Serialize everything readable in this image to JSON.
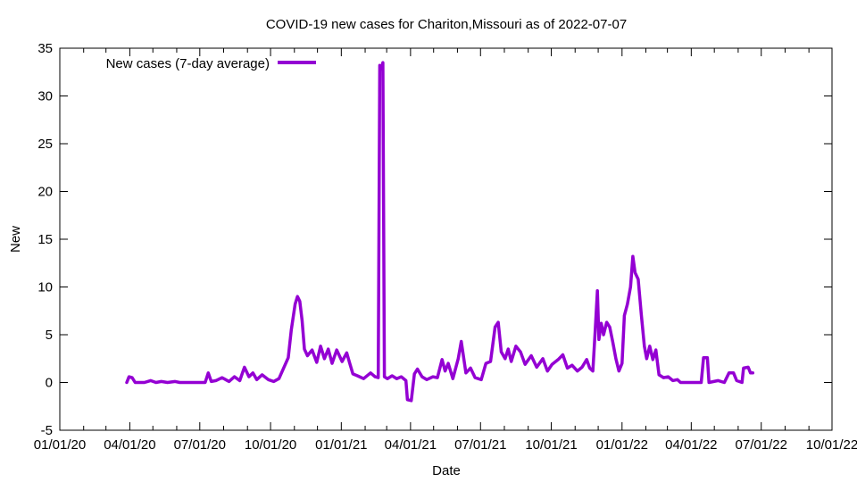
{
  "chart_data": {
    "type": "line",
    "title": "COVID-19 new cases for Chariton,Missouri as of 2022-07-07",
    "xlabel": "Date",
    "ylabel": "New",
    "xlim": [
      "2020-01-01",
      "2022-10-01"
    ],
    "ylim": [
      -5,
      35
    ],
    "x_ticks": [
      "01/01/20",
      "04/01/20",
      "07/01/20",
      "10/01/20",
      "01/01/21",
      "04/01/21",
      "07/01/21",
      "10/01/21",
      "01/01/22",
      "04/01/22",
      "07/01/22",
      "10/01/22"
    ],
    "y_ticks": [
      -5,
      0,
      5,
      10,
      15,
      20,
      25,
      30,
      35
    ],
    "grid": false,
    "legend_position": "top-left",
    "series": [
      {
        "name": "New cases (7-day average)",
        "color": "#9400d3",
        "points": [
          [
            "2020-03-28",
            0.0
          ],
          [
            "2020-03-31",
            0.6
          ],
          [
            "2020-04-04",
            0.5
          ],
          [
            "2020-04-08",
            0.0
          ],
          [
            "2020-04-20",
            0.0
          ],
          [
            "2020-04-28",
            0.2
          ],
          [
            "2020-05-05",
            0.0
          ],
          [
            "2020-05-12",
            0.1
          ],
          [
            "2020-05-20",
            0.0
          ],
          [
            "2020-05-30",
            0.1
          ],
          [
            "2020-06-05",
            0.0
          ],
          [
            "2020-07-08",
            0.0
          ],
          [
            "2020-07-12",
            1.0
          ],
          [
            "2020-07-16",
            0.1
          ],
          [
            "2020-07-22",
            0.2
          ],
          [
            "2020-07-30",
            0.5
          ],
          [
            "2020-08-08",
            0.1
          ],
          [
            "2020-08-15",
            0.6
          ],
          [
            "2020-08-22",
            0.2
          ],
          [
            "2020-08-28",
            1.6
          ],
          [
            "2020-09-03",
            0.6
          ],
          [
            "2020-09-08",
            1.0
          ],
          [
            "2020-09-13",
            0.3
          ],
          [
            "2020-09-20",
            0.8
          ],
          [
            "2020-09-28",
            0.3
          ],
          [
            "2020-10-05",
            0.1
          ],
          [
            "2020-10-12",
            0.4
          ],
          [
            "2020-10-18",
            1.5
          ],
          [
            "2020-10-24",
            2.6
          ],
          [
            "2020-10-28",
            5.5
          ],
          [
            "2020-11-02",
            8.2
          ],
          [
            "2020-11-05",
            9.0
          ],
          [
            "2020-11-08",
            8.5
          ],
          [
            "2020-11-11",
            6.5
          ],
          [
            "2020-11-14",
            3.5
          ],
          [
            "2020-11-18",
            2.8
          ],
          [
            "2020-11-24",
            3.4
          ],
          [
            "2020-11-30",
            2.1
          ],
          [
            "2020-12-05",
            3.8
          ],
          [
            "2020-12-10",
            2.5
          ],
          [
            "2020-12-15",
            3.5
          ],
          [
            "2020-12-20",
            2.0
          ],
          [
            "2020-12-26",
            3.4
          ],
          [
            "2021-01-02",
            2.2
          ],
          [
            "2021-01-08",
            3.1
          ],
          [
            "2021-01-12",
            2.0
          ],
          [
            "2021-01-16",
            0.9
          ],
          [
            "2021-01-22",
            0.7
          ],
          [
            "2021-01-30",
            0.4
          ],
          [
            "2021-02-08",
            1.0
          ],
          [
            "2021-02-14",
            0.6
          ],
          [
            "2021-02-18",
            0.5
          ],
          [
            "2021-02-20",
            33.2
          ],
          [
            "2021-02-22",
            32.8
          ],
          [
            "2021-02-24",
            33.5
          ],
          [
            "2021-02-26",
            0.6
          ],
          [
            "2021-03-02",
            0.4
          ],
          [
            "2021-03-08",
            0.7
          ],
          [
            "2021-03-14",
            0.4
          ],
          [
            "2021-03-20",
            0.6
          ],
          [
            "2021-03-26",
            0.2
          ],
          [
            "2021-03-28",
            -1.8
          ],
          [
            "2021-04-02",
            -1.9
          ],
          [
            "2021-04-06",
            0.9
          ],
          [
            "2021-04-10",
            1.4
          ],
          [
            "2021-04-16",
            0.6
          ],
          [
            "2021-04-22",
            0.3
          ],
          [
            "2021-04-30",
            0.6
          ],
          [
            "2021-05-06",
            0.5
          ],
          [
            "2021-05-12",
            2.4
          ],
          [
            "2021-05-16",
            1.2
          ],
          [
            "2021-05-20",
            2.0
          ],
          [
            "2021-05-26",
            0.4
          ],
          [
            "2021-06-02",
            2.5
          ],
          [
            "2021-06-06",
            4.3
          ],
          [
            "2021-06-12",
            1.0
          ],
          [
            "2021-06-18",
            1.5
          ],
          [
            "2021-06-24",
            0.5
          ],
          [
            "2021-07-02",
            0.3
          ],
          [
            "2021-07-08",
            2.0
          ],
          [
            "2021-07-14",
            2.2
          ],
          [
            "2021-07-20",
            5.8
          ],
          [
            "2021-07-24",
            6.3
          ],
          [
            "2021-07-28",
            3.2
          ],
          [
            "2021-08-02",
            2.5
          ],
          [
            "2021-08-06",
            3.5
          ],
          [
            "2021-08-10",
            2.2
          ],
          [
            "2021-08-16",
            3.8
          ],
          [
            "2021-08-22",
            3.2
          ],
          [
            "2021-08-28",
            1.9
          ],
          [
            "2021-09-05",
            2.8
          ],
          [
            "2021-09-12",
            1.6
          ],
          [
            "2021-09-20",
            2.5
          ],
          [
            "2021-09-26",
            1.2
          ],
          [
            "2021-10-02",
            1.9
          ],
          [
            "2021-10-10",
            2.4
          ],
          [
            "2021-10-16",
            2.9
          ],
          [
            "2021-10-22",
            1.5
          ],
          [
            "2021-10-28",
            1.8
          ],
          [
            "2021-11-04",
            1.2
          ],
          [
            "2021-11-10",
            1.6
          ],
          [
            "2021-11-16",
            2.4
          ],
          [
            "2021-11-20",
            1.5
          ],
          [
            "2021-11-24",
            1.2
          ],
          [
            "2021-11-27",
            5.2
          ],
          [
            "2021-11-30",
            9.6
          ],
          [
            "2021-12-02",
            4.5
          ],
          [
            "2021-12-05",
            6.2
          ],
          [
            "2021-12-08",
            5.0
          ],
          [
            "2021-12-12",
            6.3
          ],
          [
            "2021-12-16",
            5.8
          ],
          [
            "2021-12-20",
            4.2
          ],
          [
            "2021-12-24",
            2.5
          ],
          [
            "2021-12-28",
            1.2
          ],
          [
            "2022-01-01",
            2.0
          ],
          [
            "2022-01-04",
            7.0
          ],
          [
            "2022-01-08",
            8.2
          ],
          [
            "2022-01-12",
            10.0
          ],
          [
            "2022-01-15",
            13.2
          ],
          [
            "2022-01-18",
            11.5
          ],
          [
            "2022-01-22",
            10.8
          ],
          [
            "2022-01-26",
            7.2
          ],
          [
            "2022-01-30",
            3.8
          ],
          [
            "2022-02-02",
            2.5
          ],
          [
            "2022-02-06",
            3.8
          ],
          [
            "2022-02-10",
            2.4
          ],
          [
            "2022-02-14",
            3.4
          ],
          [
            "2022-02-18",
            0.8
          ],
          [
            "2022-02-24",
            0.5
          ],
          [
            "2022-03-02",
            0.6
          ],
          [
            "2022-03-08",
            0.2
          ],
          [
            "2022-03-14",
            0.3
          ],
          [
            "2022-03-18",
            0.0
          ],
          [
            "2022-04-14",
            0.0
          ],
          [
            "2022-04-17",
            2.6
          ],
          [
            "2022-04-22",
            2.6
          ],
          [
            "2022-04-24",
            0.0
          ],
          [
            "2022-05-06",
            0.2
          ],
          [
            "2022-05-14",
            0.0
          ],
          [
            "2022-05-20",
            1.0
          ],
          [
            "2022-05-26",
            1.0
          ],
          [
            "2022-05-30",
            0.2
          ],
          [
            "2022-06-06",
            0.0
          ],
          [
            "2022-06-08",
            1.5
          ],
          [
            "2022-06-14",
            1.6
          ],
          [
            "2022-06-17",
            1.0
          ],
          [
            "2022-06-20",
            1.0
          ]
        ]
      }
    ]
  }
}
